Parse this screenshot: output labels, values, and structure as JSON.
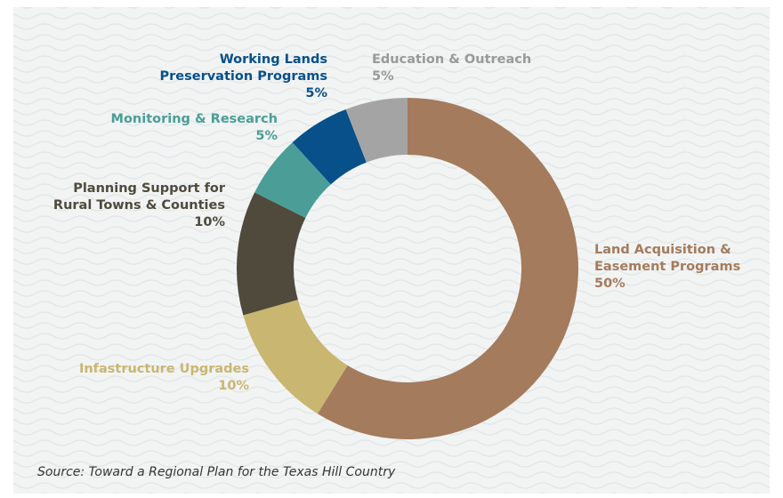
{
  "chart_data": {
    "type": "donut",
    "categories": [
      "Land Acquisition &\nEasement Programs",
      "Infastructure Upgrades",
      "Planning Support for\nRural Towns & Counties",
      "Monitoring & Research",
      "Working Lands\nPreservation Programs",
      "Education & Outreach"
    ],
    "values": [
      50,
      10,
      10,
      5,
      5,
      5
    ],
    "value_labels": [
      "50%",
      "10%",
      "10%",
      "5%",
      "5%",
      "5%"
    ],
    "colors": [
      "#a47b5c",
      "#c9b671",
      "#4f4a3b",
      "#4a9e97",
      "#07508a",
      "#a4a4a4"
    ],
    "source": "Source: Toward a Regional Plan for the Texas Hill Country"
  }
}
